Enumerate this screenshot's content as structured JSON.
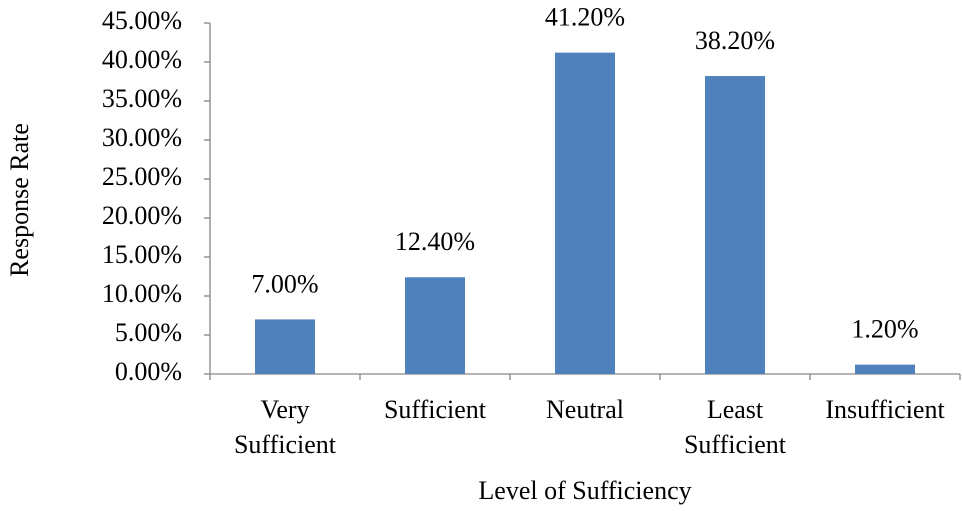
{
  "chart_data": {
    "type": "bar",
    "categories": [
      "Very Sufficient",
      "Sufficient",
      "Neutral",
      "Least Sufficient",
      "Insufficient"
    ],
    "values": [
      7,
      12.4,
      41.2,
      38.2,
      1.2
    ],
    "value_labels": [
      "7.00%",
      "12.40%",
      "41.20%",
      "38.20%",
      "1.20%"
    ],
    "color": "#4f81bd",
    "x_label": "Level of Sufficiency",
    "y_label": "Response Rate",
    "ylim": [
      0,
      45
    ],
    "yticks": [
      {
        "value": 0,
        "label": "0.00%"
      },
      {
        "value": 5,
        "label": "5.00%"
      },
      {
        "value": 10,
        "label": "10.00%"
      },
      {
        "value": 15,
        "label": "15.00%"
      },
      {
        "value": 20,
        "label": "20.00%"
      },
      {
        "value": 25,
        "label": "25.00%"
      },
      {
        "value": 30,
        "label": "30.00%"
      },
      {
        "value": 35,
        "label": "35.00%"
      },
      {
        "value": 40,
        "label": "40.00%"
      },
      {
        "value": 45,
        "label": "45.00%"
      }
    ],
    "grid": false
  }
}
